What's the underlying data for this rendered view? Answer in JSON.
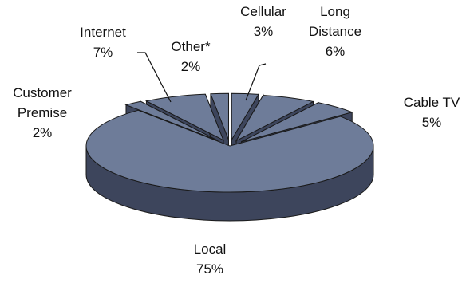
{
  "chart_data": {
    "type": "pie",
    "style": "3d-exploded",
    "slices": [
      {
        "name": "Cellular",
        "label_lines": [
          "Cellular"
        ],
        "value": 3,
        "value_label": "3%"
      },
      {
        "name": "Long Distance",
        "label_lines": [
          "Long",
          "Distance"
        ],
        "value": 6,
        "value_label": "6%"
      },
      {
        "name": "Cable TV",
        "label_lines": [
          "Cable TV"
        ],
        "value": 5,
        "value_label": "5%"
      },
      {
        "name": "Local",
        "label_lines": [
          "Local"
        ],
        "value": 75,
        "value_label": "75%"
      },
      {
        "name": "Customer Premise",
        "label_lines": [
          "Customer",
          "Premise"
        ],
        "value": 2,
        "value_label": "2%"
      },
      {
        "name": "Internet",
        "label_lines": [
          "Internet"
        ],
        "value": 7,
        "value_label": "7%"
      },
      {
        "name": "Other*",
        "label_lines": [
          "Other*"
        ],
        "value": 2,
        "value_label": "2%"
      }
    ],
    "colors": {
      "top": "#6e7c99",
      "side": "#3d455c",
      "edge": "#1a1a1a"
    },
    "legend": "none"
  }
}
